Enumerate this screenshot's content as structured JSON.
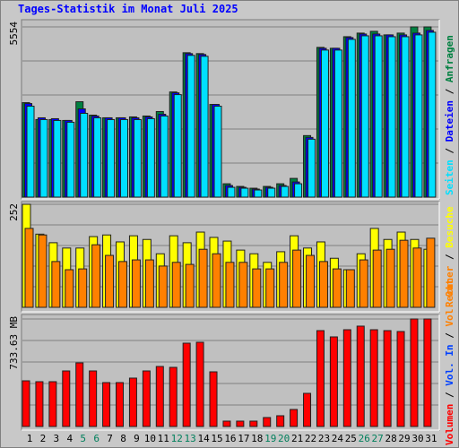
{
  "title": "Tages-Statistik im Monat Juli 2025",
  "legend_separator": " / ",
  "chart_data": [
    {
      "type": "bar",
      "ylim": [
        0,
        5554
      ],
      "yticks": [
        5554
      ],
      "series": [
        {
          "name": "Anfragen",
          "color": "#008040",
          "values": [
            3082,
            2530,
            2530,
            2501,
            3112,
            2675,
            2588,
            2588,
            2617,
            2646,
            2792,
            3431,
            4711,
            4682,
            3024,
            436,
            349,
            291,
            349,
            436,
            611,
            2007,
            4885,
            4856,
            5234,
            5351,
            5409,
            5293,
            5351,
            5554,
            5554
          ]
        },
        {
          "name": "Dateien",
          "color": "#0000ff",
          "values": [
            3053,
            2588,
            2559,
            2501,
            2879,
            2646,
            2588,
            2588,
            2588,
            2617,
            2704,
            3402,
            4682,
            4653,
            3024,
            378,
            320,
            262,
            320,
            378,
            494,
            1948,
            4856,
            4856,
            5205,
            5322,
            5322,
            5293,
            5293,
            5351,
            5438
          ]
        },
        {
          "name": "Seiten",
          "color": "#00e0ff",
          "values": [
            2966,
            2530,
            2501,
            2443,
            2734,
            2588,
            2530,
            2530,
            2530,
            2559,
            2646,
            3344,
            4624,
            4595,
            2966,
            320,
            291,
            233,
            291,
            349,
            436,
            1890,
            4798,
            4798,
            5147,
            5263,
            5263,
            5234,
            5234,
            5293,
            5380
          ]
        }
      ]
    },
    {
      "type": "bar",
      "ylim": [
        0,
        252
      ],
      "yticks": [
        252
      ],
      "series": [
        {
          "name": "Besuche",
          "color": "#ffff00",
          "values": [
            252,
            179,
            158,
            145,
            145,
            173,
            177,
            160,
            175,
            166,
            131,
            175,
            158,
            184,
            171,
            162,
            140,
            131,
            110,
            136,
            175,
            145,
            160,
            120,
            92,
            131,
            193,
            166,
            184,
            166,
            142
          ]
        },
        {
          "name": "Rechner",
          "color": "#ff8000",
          "values": [
            193,
            177,
            112,
            92,
            94,
            153,
            127,
            112,
            116,
            116,
            101,
            110,
            105,
            142,
            131,
            110,
            110,
            94,
            94,
            110,
            140,
            127,
            112,
            94,
            92,
            116,
            140,
            142,
            164,
            145,
            169
          ]
        }
      ]
    },
    {
      "type": "bar",
      "ylim": [
        0,
        733.63
      ],
      "yticks": [
        {
          "value": 733.63,
          "label": "733.63 MB"
        }
      ],
      "series": [
        {
          "name": "Volumen",
          "color": "#ff0000",
          "values": [
            311.8,
            305.7,
            305.7,
            379.1,
            434.1,
            379.1,
            299.6,
            299.6,
            330.2,
            379.1,
            409.6,
            403.5,
            568.6,
            574.7,
            373.0,
            36.7,
            36.7,
            36.7,
            61.1,
            73.4,
            116.2,
            226.2,
            654.2,
            611.4,
            660.3,
            684.8,
            660.3,
            654.2,
            648.1,
            733.63,
            733.63
          ]
        }
      ],
      "legend_extra": [
        {
          "name": "Vol. In",
          "color": "#0040ff"
        },
        {
          "name": "Vol. Out",
          "color": "#ff8000"
        }
      ],
      "categories": [
        "1",
        "2",
        "3",
        "4",
        "5",
        "6",
        "7",
        "8",
        "9",
        "10",
        "11",
        "12",
        "13",
        "14",
        "15",
        "16",
        "17",
        "18",
        "19",
        "20",
        "21",
        "22",
        "23",
        "24",
        "25",
        "26",
        "27",
        "28",
        "29",
        "30",
        "31"
      ],
      "category_colors": [
        "#000000",
        "#000000",
        "#000000",
        "#000000",
        "#00805c",
        "#00805c",
        "#000000",
        "#000000",
        "#000000",
        "#000000",
        "#000000",
        "#00805c",
        "#00805c",
        "#000000",
        "#000000",
        "#000000",
        "#000000",
        "#000000",
        "#00805c",
        "#00805c",
        "#000000",
        "#000000",
        "#000000",
        "#000000",
        "#000000",
        "#00805c",
        "#00805c",
        "#000000",
        "#000000",
        "#000000",
        "#000000"
      ]
    }
  ]
}
